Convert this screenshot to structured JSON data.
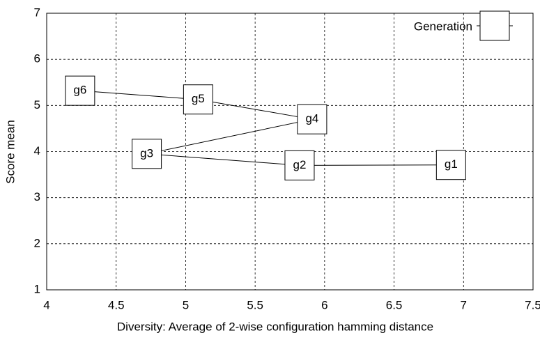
{
  "chart_data": {
    "type": "line",
    "x_label": "Diversity: Average of 2-wise configuration hamming distance",
    "y_label": "Score mean",
    "series": [
      {
        "name": "Generation",
        "color": "#000000",
        "x": [
          6.91,
          5.82,
          4.72,
          5.91,
          5.09,
          4.24
        ],
        "values": [
          3.71,
          3.7,
          3.95,
          4.7,
          5.13,
          5.32
        ],
        "point_labels": [
          "g1",
          "g2",
          "g3",
          "g4",
          "g5",
          "g6"
        ]
      }
    ],
    "xlim": [
      4,
      7.5
    ],
    "xticks": [
      4,
      4.5,
      5,
      5.5,
      6,
      6.5,
      7,
      7.5
    ],
    "ylim": [
      1,
      7
    ],
    "yticks": [
      1,
      2,
      3,
      4,
      5,
      6,
      7
    ],
    "grid": true,
    "legend": "upper right"
  }
}
